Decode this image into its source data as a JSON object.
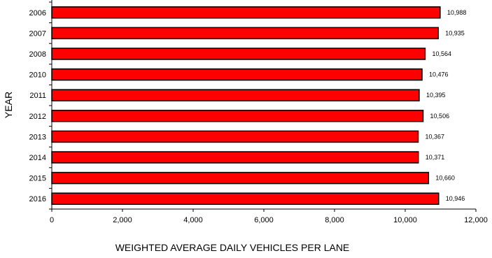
{
  "chart_data": {
    "type": "bar",
    "orientation": "horizontal",
    "categories": [
      "2006",
      "2007",
      "2008",
      "2010",
      "2011",
      "2012",
      "2013",
      "2014",
      "2015",
      "2016"
    ],
    "values": [
      10988,
      10935,
      10564,
      10476,
      10395,
      10506,
      10367,
      10371,
      10660,
      10946
    ],
    "data_labels": [
      "10,988",
      "10,935",
      "10,564",
      "10,476",
      "10,395",
      "10,506",
      "10,367",
      "10,371",
      "10,660",
      "10,946"
    ],
    "xlim": [
      0,
      12000
    ],
    "x_ticks": [
      0,
      2000,
      4000,
      6000,
      8000,
      10000,
      12000
    ],
    "x_tick_labels": [
      "0",
      "2,000",
      "4,000",
      "6,000",
      "8,000",
      "10,000",
      "12,000"
    ],
    "xlabel": "WEIGHTED AVERAGE DAILY VEHICLES PER LANE",
    "ylabel": "YEAR",
    "title": "",
    "grid": false,
    "bar_color": "#FF0000",
    "bar_edge_color": "#000000"
  }
}
